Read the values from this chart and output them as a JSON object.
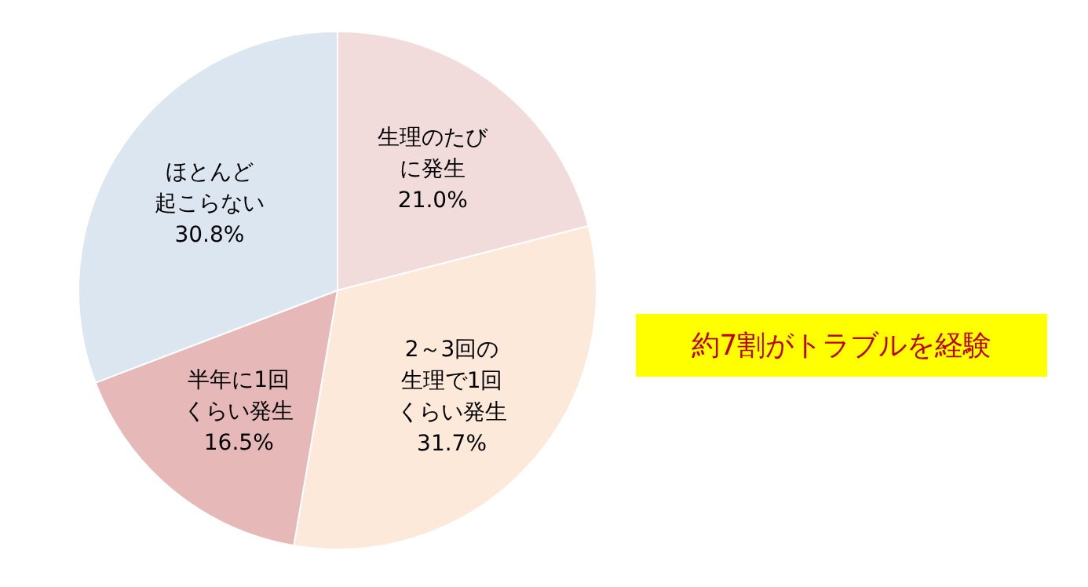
{
  "chart_data": {
    "type": "pie",
    "categories": [
      "生理のたびに発生",
      "2～3回の生理で1回くらい発生",
      "半年に1回くらい発生",
      "ほとんど起こらない"
    ],
    "values": [
      21.0,
      31.7,
      16.5,
      30.8
    ],
    "value_labels": [
      "21.0%",
      "31.7%",
      "16.5%",
      "30.8%"
    ],
    "colors": [
      "#f2dcdb",
      "#fde9d9",
      "#e6b9b8",
      "#dce6f1"
    ],
    "annotations": [
      "約7割がトラブルを経験"
    ]
  }
}
